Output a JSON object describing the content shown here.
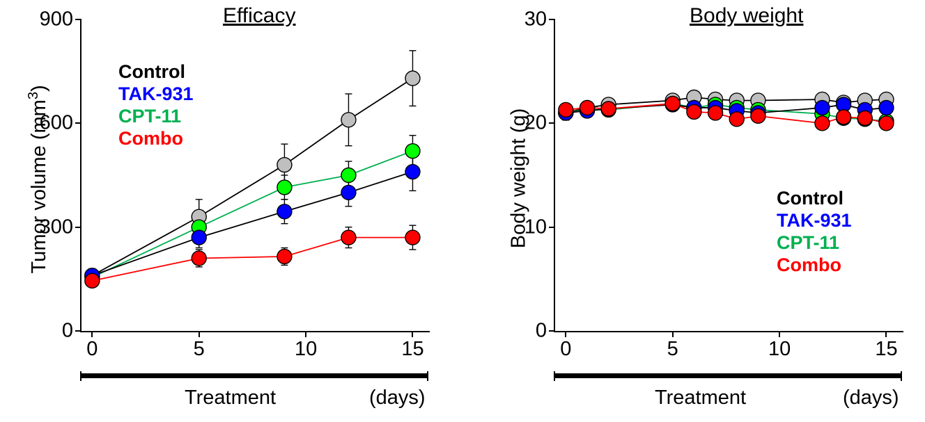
{
  "colors": {
    "control": {
      "fill": "#bfbfbf",
      "stroke": "#000000",
      "line": "#000000"
    },
    "tak": {
      "fill": "#0000ff",
      "stroke": "#000000",
      "line": "#000000"
    },
    "cpt": {
      "fill": "#00ff00",
      "stroke": "#000000",
      "line": "#00b050"
    },
    "combo": {
      "fill": "#ff0000",
      "stroke": "#000000",
      "line": "#ff0000"
    }
  },
  "marker": {
    "r": 10.5,
    "stroke_w": 1.4,
    "line_w": 1.8,
    "err_w": 1.4,
    "cap_w": 10
  },
  "legend_labels": {
    "control": "Control",
    "tak": "TAK-931",
    "cpt": "CPT-11",
    "combo": "Combo"
  },
  "legend_colors": {
    "control": "#000000",
    "tak": "#0000ff",
    "cpt": "#00b050",
    "combo": "#ff0000"
  },
  "efficacy": {
    "title": "Efficacy",
    "ylabel": "Tumor volume (mm",
    "ylabel_unit_sup": "3",
    "ylabel_close": ")",
    "xlabel": "Treatment",
    "xlabel_unit": "(days)",
    "xlim": [
      -0.5,
      15.8
    ],
    "ylim": [
      0,
      900
    ],
    "xticks": [
      0,
      5,
      10,
      15
    ],
    "yticks": [
      0,
      300,
      600,
      900
    ],
    "series": {
      "control": {
        "x": [
          0,
          5,
          9,
          12,
          15
        ],
        "y": [
          160,
          330,
          480,
          610,
          730
        ],
        "err": [
          20,
          50,
          60,
          75,
          80
        ]
      },
      "cpt": {
        "x": [
          0,
          5,
          9,
          12,
          15
        ],
        "y": [
          155,
          300,
          415,
          450,
          520
        ],
        "err": [
          18,
          30,
          35,
          40,
          45
        ]
      },
      "tak": {
        "x": [
          0,
          5,
          9,
          12,
          15
        ],
        "y": [
          160,
          270,
          345,
          400,
          460
        ],
        "err": [
          18,
          30,
          35,
          40,
          55
        ]
      },
      "combo": {
        "x": [
          0,
          5,
          9,
          12,
          15
        ],
        "y": [
          145,
          210,
          215,
          270,
          270
        ],
        "err": [
          18,
          25,
          25,
          30,
          35
        ]
      }
    }
  },
  "bodyweight": {
    "title": "Body weight",
    "ylabel": "Body weight  (g)",
    "xlabel": "Treatment",
    "xlabel_unit": "(days)",
    "xlim": [
      -0.5,
      15.8
    ],
    "ylim": [
      0,
      30
    ],
    "xticks": [
      0,
      5,
      10,
      15
    ],
    "yticks": [
      0,
      10,
      20,
      30
    ],
    "series": {
      "control": {
        "x": [
          0,
          1,
          2,
          5,
          6,
          7,
          8,
          9,
          12,
          13,
          14,
          15
        ],
        "y": [
          21,
          21.5,
          21.8,
          22.2,
          22.5,
          22.3,
          22.2,
          22.2,
          22.3,
          22.0,
          22.2,
          22.3
        ],
        "err": [
          0.7,
          0.5,
          0.5,
          0.5,
          0.5,
          0.5,
          0.5,
          0.5,
          0.5,
          0.5,
          0.5,
          0.5
        ]
      },
      "cpt": {
        "x": [
          0,
          1,
          2,
          5,
          6,
          7,
          8,
          9,
          12,
          13,
          14,
          15
        ],
        "y": [
          21.0,
          21.3,
          21.3,
          21.9,
          21.5,
          21.8,
          21.5,
          21.3,
          20.9,
          20.5,
          20.4,
          20.2
        ],
        "err": [
          0,
          0,
          0,
          0,
          0,
          0,
          0,
          0,
          0,
          0,
          0,
          0
        ]
      },
      "tak": {
        "x": [
          0,
          1,
          2,
          5,
          6,
          7,
          8,
          9,
          12,
          13,
          14,
          15
        ],
        "y": [
          21.0,
          21.2,
          21.4,
          21.8,
          21.5,
          21.5,
          21.2,
          21.0,
          21.5,
          21.8,
          21.3,
          21.5
        ],
        "err": [
          0,
          0,
          0,
          0,
          0,
          0,
          0,
          0,
          0,
          0,
          0,
          0
        ]
      },
      "combo": {
        "x": [
          0,
          1,
          2,
          5,
          6,
          7,
          8,
          9,
          12,
          13,
          14,
          15
        ],
        "y": [
          21.3,
          21.5,
          21.4,
          21.9,
          21.1,
          21.0,
          20.4,
          20.7,
          20.0,
          20.6,
          20.5,
          20.0
        ],
        "err": [
          0,
          0,
          0,
          0,
          0,
          0,
          0,
          0,
          0,
          0,
          0,
          0
        ]
      }
    }
  }
}
